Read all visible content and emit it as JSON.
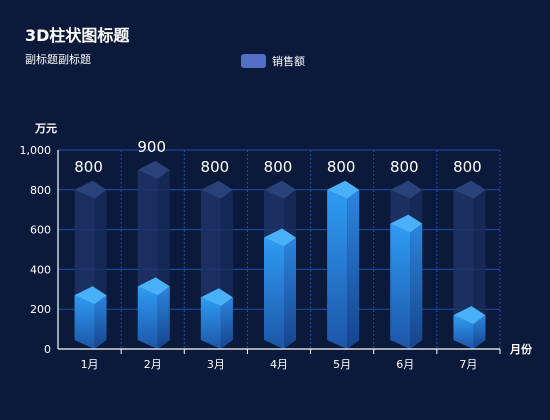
{
  "chart_data": {
    "type": "bar",
    "title": "3D柱状图标题",
    "subtitle": "副标题副标题",
    "legend": [
      "销售额"
    ],
    "legend_position": "top-center",
    "xlabel": "月份",
    "ylabel": "万元",
    "categories": [
      "1月",
      "2月",
      "3月",
      "4月",
      "5月",
      "6月",
      "7月"
    ],
    "series": [
      {
        "name": "销售额",
        "values": [
          270,
          315,
          260,
          560,
          800,
          630,
          170
        ]
      }
    ],
    "background_values": [
      800,
      900,
      800,
      800,
      800,
      800,
      800
    ],
    "ylim": [
      0,
      1000
    ],
    "yticks": [
      "0",
      "200",
      "400",
      "600",
      "800",
      "1,000"
    ],
    "grid": true,
    "colors": {
      "background": "#0b1a3a",
      "bar_top": "#2f9cf4",
      "bar_bottom": "#1c56a8",
      "bar_right": "#1a3f86",
      "bar_cap": "#4ab0f8",
      "ghost": "#1e3469",
      "ghost_cap": "#2a427a",
      "grid": "#1f4fa8",
      "legend": "#5470c6"
    }
  }
}
